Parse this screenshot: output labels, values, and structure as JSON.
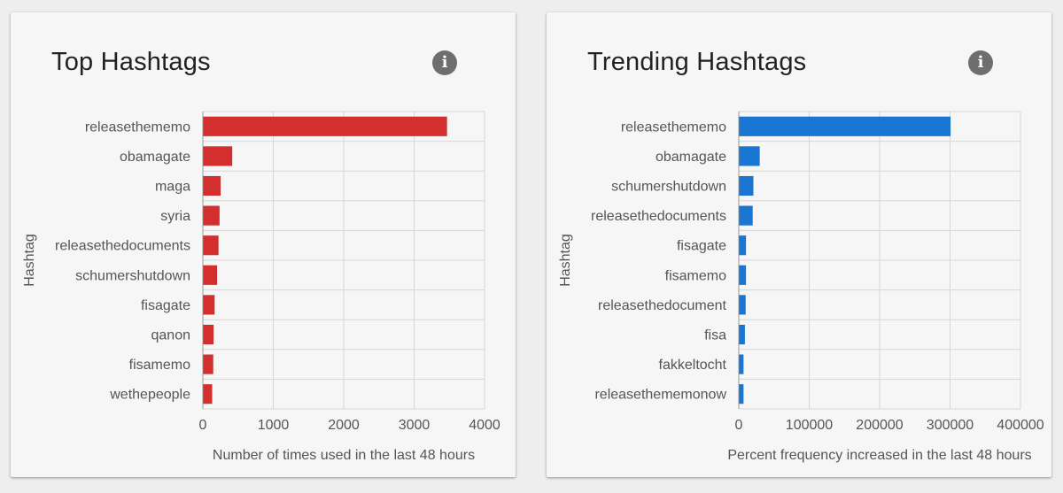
{
  "charts": [
    {
      "title": "Top Hashtags",
      "info_icon": "info-icon",
      "color": "#d32f2f",
      "chart_data": {
        "type": "bar",
        "orientation": "horizontal",
        "categories": [
          "releasethememo",
          "obamagate",
          "maga",
          "syria",
          "releasethedocuments",
          "schumershutdown",
          "fisagate",
          "qanon",
          "fisamemo",
          "wethepeople"
        ],
        "values": [
          3460,
          410,
          245,
          230,
          215,
          195,
          160,
          145,
          140,
          125
        ],
        "xlabel": "Number of times used in the last 48 hours",
        "ylabel": "Hashtag",
        "xlim": [
          0,
          4000
        ],
        "xticks": [
          0,
          1000,
          2000,
          3000,
          4000
        ],
        "xtick_labels": [
          "0",
          "1000",
          "2000",
          "3000",
          "4000"
        ],
        "grid": true
      }
    },
    {
      "title": "Trending Hashtags",
      "info_icon": "info-icon",
      "color": "#1976d2",
      "chart_data": {
        "type": "bar",
        "orientation": "horizontal",
        "categories": [
          "releasethememo",
          "obamagate",
          "schumershutdown",
          "releasethedocuments",
          "fisagate",
          "fisamemo",
          "releasethedocument",
          "fisa",
          "fakkeltocht",
          "releasethememonow"
        ],
        "values": [
          300000,
          29000,
          20000,
          19000,
          9500,
          9500,
          9000,
          8000,
          6000,
          6000
        ],
        "xlabel": "Percent frequency increased in the last 48 hours",
        "ylabel": "Hashtag",
        "xlim": [
          0,
          400000
        ],
        "xticks": [
          0,
          100000,
          200000,
          300000,
          400000
        ],
        "xtick_labels": [
          "0",
          "100000",
          "200000",
          "300000",
          "400000"
        ],
        "grid": true
      }
    }
  ]
}
